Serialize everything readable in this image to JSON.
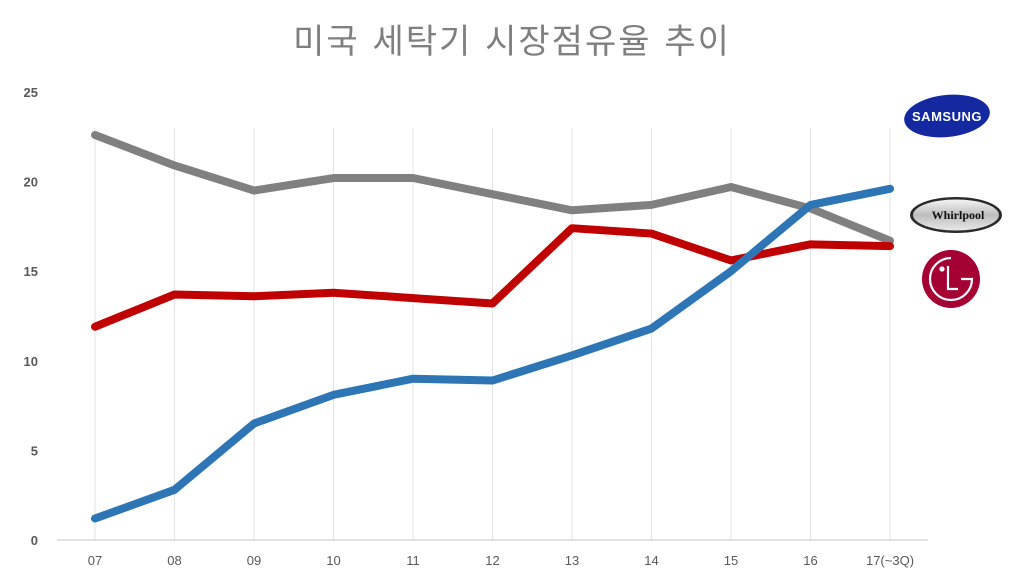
{
  "title": "미국 세탁기 시장점유율 추이",
  "chart_data": {
    "type": "line",
    "title": "미국 세탁기 시장점유율 추이",
    "xlabel": "",
    "ylabel": "",
    "categories": [
      "07",
      "08",
      "09",
      "10",
      "11",
      "12",
      "13",
      "14",
      "15",
      "16",
      "17(~3Q)"
    ],
    "y_ticks": [
      "0",
      "5",
      "10",
      "15",
      "20",
      "25"
    ],
    "ylim": [
      0,
      25
    ],
    "grid": "vertical",
    "legend": "logos on right (Samsung, Whirlpool, LG)",
    "series": [
      {
        "name": "Whirlpool",
        "color": "#808080",
        "values": [
          22.6,
          20.9,
          19.5,
          20.2,
          20.2,
          19.3,
          18.4,
          18.7,
          19.7,
          18.5,
          16.7
        ]
      },
      {
        "name": "LG",
        "color": "#C00000",
        "values": [
          11.9,
          13.7,
          13.6,
          13.8,
          13.5,
          13.2,
          17.4,
          17.1,
          15.6,
          16.5,
          16.4
        ]
      },
      {
        "name": "Samsung",
        "color": "#2E75B6",
        "values": [
          1.2,
          2.8,
          6.5,
          8.1,
          9.0,
          8.9,
          10.3,
          11.8,
          15.0,
          18.7,
          19.6
        ]
      }
    ]
  },
  "logos": {
    "samsung": {
      "text": "SAMSUNG",
      "color": "#1428A0"
    },
    "whirlpool": {
      "text": "Whirlpool"
    },
    "lg": {
      "text": "LG",
      "color": "#A50034"
    }
  }
}
